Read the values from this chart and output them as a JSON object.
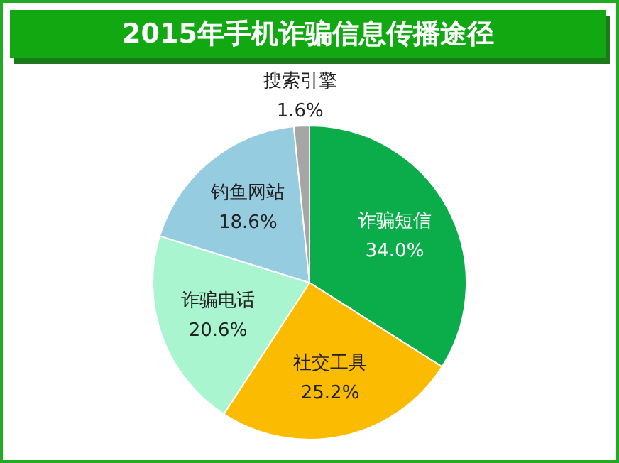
{
  "chart_data": {
    "type": "pie",
    "title": "2015年手机诈骗信息传播途径",
    "categories": [
      "诈骗短信",
      "社交工具",
      "诈骗电话",
      "钓鱼网站",
      "搜索引擎"
    ],
    "values": [
      34.0,
      25.2,
      20.6,
      18.6,
      1.6
    ],
    "value_labels": [
      "34.0%",
      "25.2%",
      "20.6%",
      "18.6%",
      "1.6%"
    ],
    "colors": [
      "#0aad4a",
      "#fbbb00",
      "#a8f5cf",
      "#96cce0",
      "#a6a6a6"
    ],
    "legend": false
  }
}
